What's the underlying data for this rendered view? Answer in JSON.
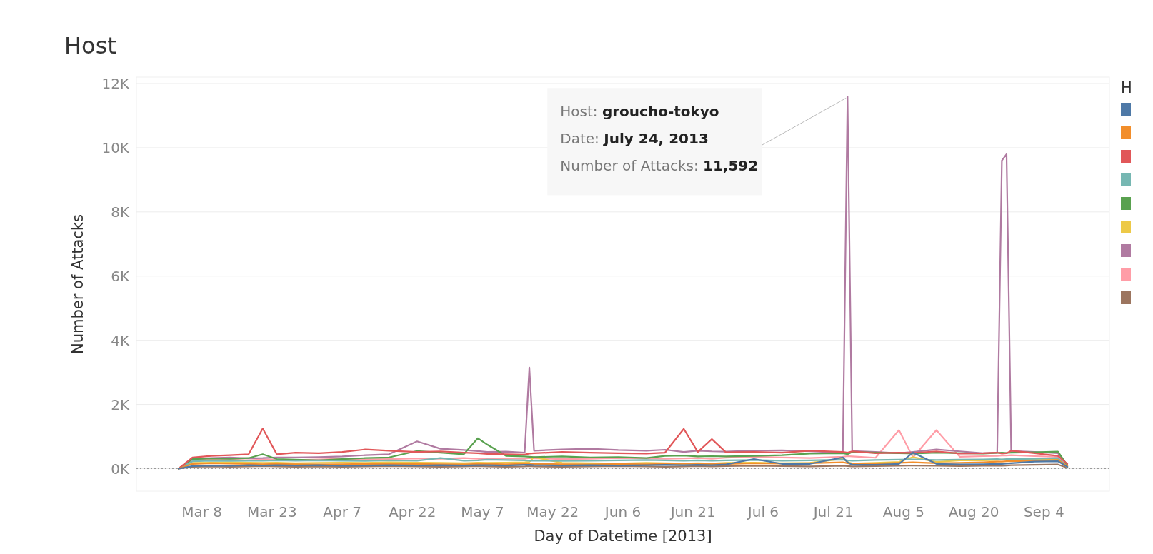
{
  "chart_data": {
    "type": "line",
    "title": "Host",
    "xlabel": "Day of Datetime [2013]",
    "ylabel": "Number of Attacks",
    "legend_title": "H",
    "grid": "y",
    "line_style": "solid",
    "marker": "none",
    "x": [
      "2013-03-03",
      "2013-03-06",
      "2013-03-10",
      "2013-03-14",
      "2013-03-18",
      "2013-03-21",
      "2013-03-24",
      "2013-03-28",
      "2013-04-02",
      "2013-04-07",
      "2013-04-12",
      "2013-04-17",
      "2013-04-23",
      "2013-04-28",
      "2013-05-03",
      "2013-05-06",
      "2013-05-08",
      "2013-05-12",
      "2013-05-16",
      "2013-05-17",
      "2013-05-18",
      "2013-05-24",
      "2013-05-30",
      "2013-06-05",
      "2013-06-11",
      "2013-06-15",
      "2013-06-19",
      "2013-06-22",
      "2013-06-25",
      "2013-06-28",
      "2013-07-04",
      "2013-07-10",
      "2013-07-16",
      "2013-07-23",
      "2013-07-24",
      "2013-07-25",
      "2013-07-30",
      "2013-08-04",
      "2013-08-07",
      "2013-08-12",
      "2013-08-17",
      "2013-08-22",
      "2013-08-25",
      "2013-08-26",
      "2013-08-27",
      "2013-08-28",
      "2013-09-02",
      "2013-09-07",
      "2013-09-09"
    ],
    "xlim": [
      "2013-02-22",
      "2013-09-18"
    ],
    "xticks": [
      {
        "value": "2013-03-08",
        "label": "Mar 8"
      },
      {
        "value": "2013-03-23",
        "label": "Mar 23"
      },
      {
        "value": "2013-04-07",
        "label": "Apr 7"
      },
      {
        "value": "2013-04-22",
        "label": "Apr 22"
      },
      {
        "value": "2013-05-07",
        "label": "May 7"
      },
      {
        "value": "2013-05-22",
        "label": "May 22"
      },
      {
        "value": "2013-06-06",
        "label": "Jun 6"
      },
      {
        "value": "2013-06-21",
        "label": "Jun 21"
      },
      {
        "value": "2013-07-06",
        "label": "Jul 6"
      },
      {
        "value": "2013-07-21",
        "label": "Jul 21"
      },
      {
        "value": "2013-08-05",
        "label": "Aug 5"
      },
      {
        "value": "2013-08-20",
        "label": "Aug 20"
      },
      {
        "value": "2013-09-04",
        "label": "Sep 4"
      }
    ],
    "ylim": [
      -700,
      12200
    ],
    "yticks": [
      {
        "value": 0,
        "label": "0K"
      },
      {
        "value": 2000,
        "label": "2K"
      },
      {
        "value": 4000,
        "label": "4K"
      },
      {
        "value": 6000,
        "label": "6K"
      },
      {
        "value": 8000,
        "label": "8K"
      },
      {
        "value": 10000,
        "label": "10K"
      },
      {
        "value": 12000,
        "label": "12K"
      }
    ],
    "ref_lines": [
      {
        "axis": "y",
        "value": 0,
        "color": "#999999",
        "line_style": "dotted"
      }
    ],
    "annotations": [
      {
        "text": "Host: groucho-tokyo\nDate: July 24, 2013\nNumber of Attacks: 11,592",
        "x": "2013-07-24",
        "y": 11592
      }
    ],
    "series": [
      {
        "color": "#4e79a7",
        "values": [
          0,
          80,
          100,
          90,
          110,
          100,
          110,
          100,
          110,
          90,
          100,
          110,
          100,
          110,
          100,
          110,
          110,
          100,
          120,
          120,
          110,
          100,
          110,
          100,
          110,
          120,
          110,
          120,
          110,
          130,
          300,
          150,
          150,
          350,
          200,
          120,
          120,
          150,
          500,
          150,
          130,
          140,
          150,
          150,
          160,
          170,
          220,
          230,
          60
        ]
      },
      {
        "color": "#f28e2b",
        "values": [
          0,
          150,
          170,
          160,
          150,
          140,
          150,
          140,
          130,
          140,
          150,
          150,
          150,
          140,
          130,
          150,
          150,
          140,
          150,
          150,
          150,
          140,
          130,
          150,
          140,
          150,
          160,
          150,
          150,
          150,
          170,
          160,
          170,
          200,
          170,
          150,
          160,
          180,
          200,
          170,
          180,
          200,
          220,
          220,
          230,
          230,
          250,
          270,
          80
        ]
      },
      {
        "color": "#e15759",
        "values": [
          0,
          350,
          400,
          420,
          450,
          1250,
          450,
          500,
          480,
          520,
          600,
          560,
          520,
          540,
          500,
          480,
          460,
          450,
          440,
          470,
          480,
          520,
          500,
          480,
          470,
          500,
          1240,
          520,
          920,
          510,
          520,
          500,
          560,
          520,
          500,
          540,
          480,
          500,
          490,
          540,
          470,
          480,
          500,
          470,
          480,
          560,
          480,
          400,
          150
        ]
      },
      {
        "color": "#76b7b2",
        "values": [
          0,
          230,
          250,
          240,
          250,
          250,
          260,
          250,
          260,
          250,
          240,
          260,
          250,
          330,
          250,
          260,
          280,
          270,
          260,
          250,
          250,
          240,
          250,
          260,
          270,
          260,
          250,
          260,
          250,
          260,
          270,
          250,
          260,
          280,
          260,
          250,
          270,
          280,
          290,
          270,
          280,
          290,
          300,
          290,
          300,
          300,
          310,
          330,
          60
        ]
      },
      {
        "color": "#59a14f",
        "values": [
          0,
          300,
          320,
          310,
          330,
          450,
          300,
          280,
          260,
          300,
          330,
          350,
          550,
          500,
          450,
          950,
          750,
          400,
          380,
          370,
          360,
          380,
          350,
          360,
          330,
          400,
          410,
          380,
          390,
          380,
          400,
          420,
          470,
          480,
          450,
          520,
          500,
          480,
          470,
          500,
          480,
          470,
          490,
          500,
          490,
          500,
          510,
          530,
          100
        ]
      },
      {
        "color": "#edc948",
        "values": [
          0,
          180,
          190,
          200,
          190,
          180,
          190,
          170,
          180,
          190,
          180,
          200,
          190,
          180,
          170,
          190,
          180,
          190,
          200,
          210,
          360,
          180,
          170,
          160,
          180,
          170,
          160,
          170,
          160,
          180,
          190,
          170,
          180,
          310,
          210,
          160,
          180,
          210,
          360,
          210,
          260,
          260,
          270,
          280,
          280,
          290,
          300,
          310,
          50
        ]
      },
      {
        "color": "#b07aa1",
        "values": [
          0,
          300,
          330,
          350,
          320,
          330,
          350,
          350,
          360,
          380,
          420,
          450,
          850,
          620,
          580,
          550,
          520,
          530,
          500,
          3150,
          560,
          600,
          620,
          580,
          560,
          590,
          520,
          560,
          540,
          530,
          560,
          570,
          540,
          500,
          11592,
          550,
          520,
          480,
          520,
          600,
          540,
          480,
          500,
          9600,
          9800,
          550,
          520,
          480,
          120
        ]
      },
      {
        "color": "#ff9da7",
        "values": [
          0,
          270,
          290,
          280,
          260,
          290,
          280,
          270,
          290,
          310,
          290,
          300,
          320,
          310,
          330,
          310,
          300,
          320,
          310,
          330,
          320,
          300,
          310,
          330,
          320,
          310,
          320,
          330,
          310,
          340,
          370,
          350,
          330,
          370,
          390,
          380,
          340,
          1200,
          350,
          1200,
          370,
          390,
          400,
          410,
          410,
          420,
          390,
          370,
          80
        ]
      },
      {
        "color": "#9c755f",
        "values": [
          0,
          60,
          70,
          60,
          70,
          80,
          70,
          60,
          70,
          60,
          70,
          80,
          70,
          60,
          70,
          80,
          70,
          60,
          70,
          80,
          70,
          60,
          70,
          80,
          70,
          60,
          70,
          80,
          70,
          80,
          90,
          80,
          70,
          90,
          80,
          70,
          80,
          90,
          100,
          90,
          80,
          90,
          100,
          90,
          100,
          110,
          120,
          130,
          30
        ]
      }
    ]
  }
}
